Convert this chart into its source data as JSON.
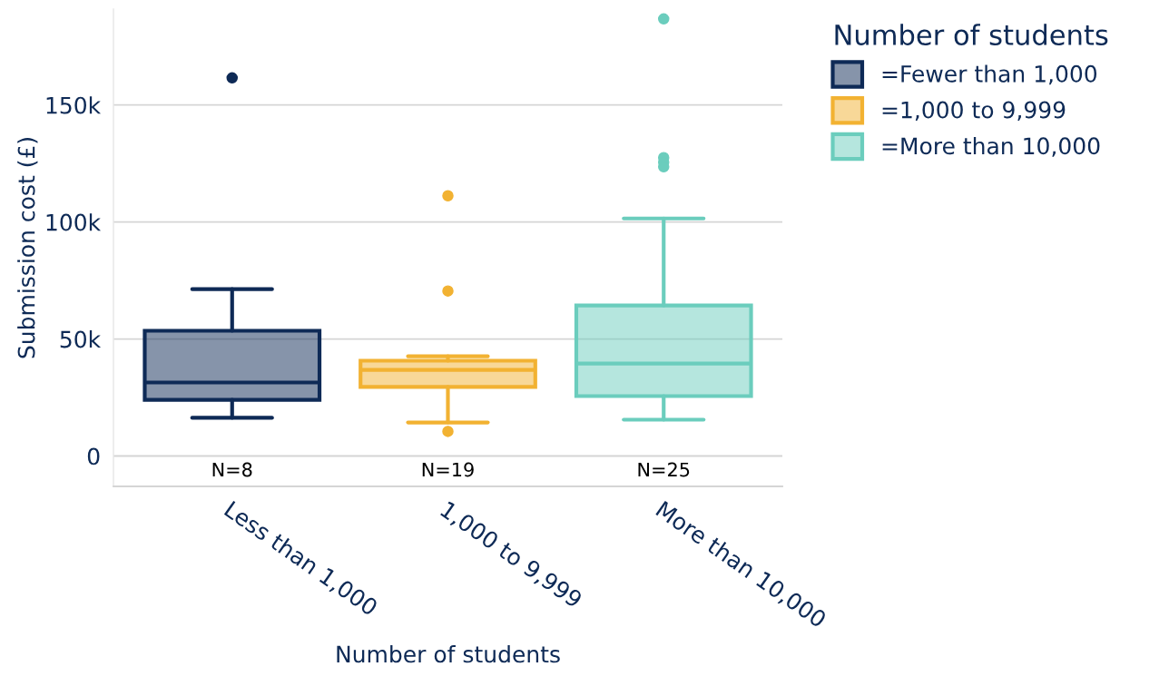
{
  "chart_data": {
    "type": "box",
    "xlabel": "Number of students",
    "ylabel": "Submission cost (£)",
    "legend_title": "Number of students",
    "categories": [
      "Less than 1,000",
      "1,000 to 9,999",
      "More than 10,000"
    ],
    "series": [
      {
        "name": "=Fewer than 1,000",
        "color": "#0e2a56",
        "boxes": [
          {
            "low": 16300,
            "q1": 24000,
            "median": 31400,
            "q3": 53500,
            "high": 71300,
            "outliers": [
              161600
            ]
          },
          null,
          null
        ]
      },
      {
        "name": "=1,000 to 9,999",
        "color": "#f2b232",
        "boxes": [
          null,
          {
            "low": 14300,
            "q1": 29500,
            "median": 36800,
            "q3": 40700,
            "high": 42600,
            "outliers": [
              111200,
              70500,
              10500
            ]
          },
          null
        ]
      },
      {
        "name": "=More than 10,000",
        "color": "#6bcdbd",
        "boxes": [
          null,
          null,
          {
            "low": 15500,
            "q1": 25600,
            "median": 39500,
            "q3": 64300,
            "high": 101500,
            "outliers": [
              186800,
              127500,
              125600,
              123600
            ]
          }
        ]
      }
    ],
    "ylim": [
      -13000,
      191000
    ],
    "yticks": [
      {
        "value": 0,
        "label": "0"
      },
      {
        "value": 50000,
        "label": "50k"
      },
      {
        "value": 100000,
        "label": "100k"
      },
      {
        "value": 150000,
        "label": "150k"
      }
    ],
    "annotations": [
      "N=8",
      "N=19",
      "N=25"
    ],
    "grid": "y",
    "legend": "top right"
  }
}
